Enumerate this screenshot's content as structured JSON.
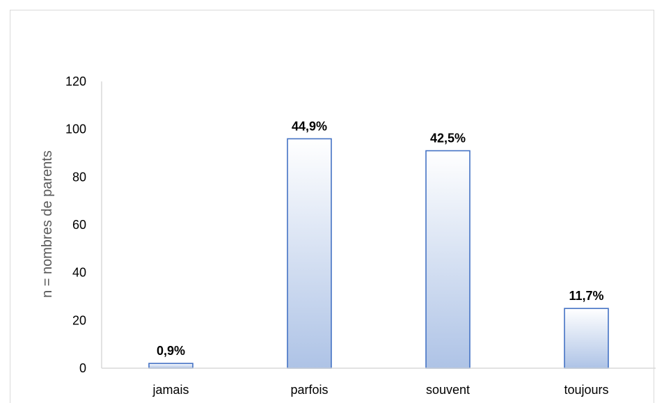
{
  "chart_data": {
    "type": "bar",
    "categories": [
      "jamais",
      "parfois",
      "souvent",
      "toujours"
    ],
    "values": [
      2,
      96,
      91,
      25
    ],
    "data_labels": [
      "0,9%",
      "44,9%",
      "42,5%",
      "11,7%"
    ],
    "ylabel": "n = nombres de parents",
    "xlabel": "",
    "ylim": [
      0,
      120
    ],
    "yticks": [
      0,
      20,
      40,
      60,
      80,
      100,
      120
    ],
    "grid": false,
    "colors": {
      "bar_top": "#ffffff",
      "bar_bottom": "#aec3e6",
      "bar_edge": "#4472c4",
      "axis": "#d9d9d9"
    }
  }
}
